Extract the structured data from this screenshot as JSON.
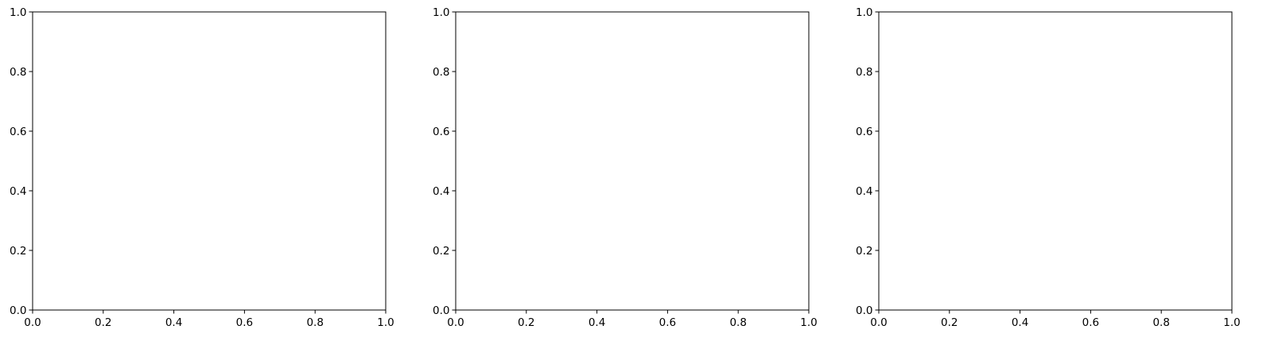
{
  "chart_data": [
    {
      "type": "line",
      "title": "",
      "xlabel": "",
      "ylabel": "",
      "xlim": [
        0,
        1
      ],
      "ylim": [
        0,
        1
      ],
      "xticks": [
        "0.0",
        "0.2",
        "0.4",
        "0.6",
        "0.8",
        "1.0"
      ],
      "yticks": [
        "0.0",
        "0.2",
        "0.4",
        "0.6",
        "0.8",
        "1.0"
      ],
      "grid": false,
      "series": []
    },
    {
      "type": "line",
      "title": "",
      "xlabel": "",
      "ylabel": "",
      "xlim": [
        0,
        1
      ],
      "ylim": [
        0,
        1
      ],
      "xticks": [
        "0.0",
        "0.2",
        "0.4",
        "0.6",
        "0.8",
        "1.0"
      ],
      "yticks": [
        "0.0",
        "0.2",
        "0.4",
        "0.6",
        "0.8",
        "1.0"
      ],
      "grid": false,
      "series": []
    },
    {
      "type": "line",
      "title": "",
      "xlabel": "",
      "ylabel": "",
      "xlim": [
        0,
        1
      ],
      "ylim": [
        0,
        1
      ],
      "xticks": [
        "0.0",
        "0.2",
        "0.4",
        "0.6",
        "0.8",
        "1.0"
      ],
      "yticks": [
        "0.0",
        "0.2",
        "0.4",
        "0.6",
        "0.8",
        "1.0"
      ],
      "grid": false,
      "series": []
    }
  ]
}
